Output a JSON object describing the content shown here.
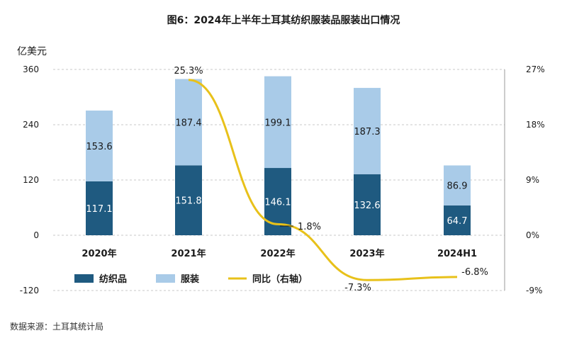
{
  "title": "图6：2024年上半年土耳其纺织服装品服装出口情况",
  "unit": "亿美元",
  "source": "数据来源：土耳其统计局",
  "chart_data": {
    "type": "bar",
    "stacked": true,
    "categories": [
      "2020年",
      "2021年",
      "2022年",
      "2023年",
      "2024H1"
    ],
    "series": [
      {
        "name": "纺织品",
        "axis": "left",
        "color": "#1f5a80",
        "values": [
          117.1,
          151.8,
          146.1,
          132.6,
          64.7
        ],
        "labels": [
          "117.1",
          "151.8",
          "146.1",
          "132.6",
          "64.7"
        ]
      },
      {
        "name": "服装",
        "axis": "left",
        "color": "#a9cbe8",
        "values": [
          153.6,
          187.4,
          199.1,
          187.3,
          86.9
        ],
        "labels": [
          "153.6",
          "187.4",
          "199.1",
          "187.3",
          "86.9"
        ]
      },
      {
        "name": "同比（右轴）",
        "axis": "right",
        "type": "line",
        "color": "#e8c11a",
        "values": [
          null,
          25.3,
          1.8,
          -7.3,
          -6.8
        ],
        "labels": [
          "",
          "25.3%",
          "1.8%",
          "-7.3%",
          "-6.8%"
        ]
      }
    ],
    "y_left": {
      "min": -120,
      "max": 360,
      "ticks": [
        "-120",
        "0",
        "120",
        "240",
        "360"
      ],
      "tick_values": [
        -120,
        0,
        120,
        240,
        360
      ]
    },
    "y_right": {
      "min": -9,
      "max": 27,
      "ticks": [
        "-9%",
        "0%",
        "9%",
        "18%",
        "27%"
      ],
      "tick_values": [
        -9,
        0,
        9,
        18,
        27
      ]
    },
    "grid": true,
    "legend": "bottom-left"
  }
}
